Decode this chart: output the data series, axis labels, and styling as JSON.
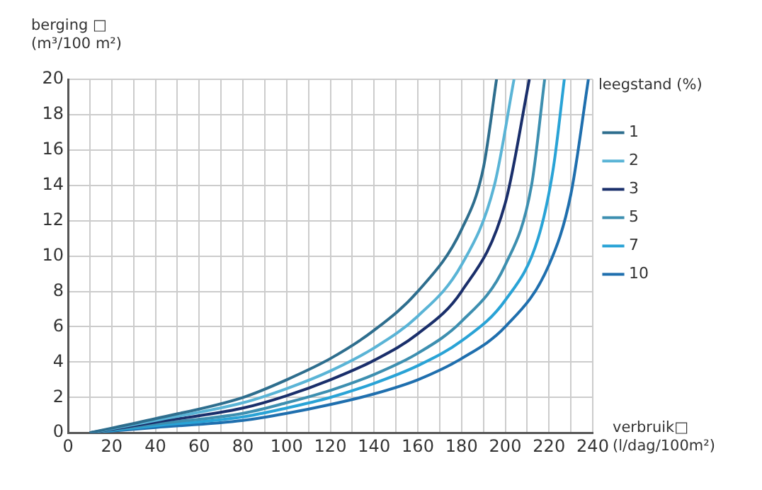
{
  "chart_data": {
    "type": "line",
    "ylabel": "berging □\n(m³/100 m²)",
    "xlabel": "verbruik□\n(l/dag/100m²)",
    "legend_title": "leegstand (%)",
    "legend": "top right",
    "grid": true,
    "marker": "none",
    "line_style": "solid",
    "xlim": [
      0,
      240
    ],
    "xticks": [
      0,
      {
        "value": 10,
        "label": null
      },
      20,
      {
        "value": 30,
        "label": null
      },
      40,
      {
        "value": 50,
        "label": null
      },
      60,
      {
        "value": 70,
        "label": null
      },
      80,
      {
        "value": 90,
        "label": null
      },
      100,
      {
        "value": 110,
        "label": null
      },
      120,
      {
        "value": 130,
        "label": null
      },
      140,
      {
        "value": 150,
        "label": null
      },
      160,
      {
        "value": 170,
        "label": null
      },
      180,
      {
        "value": 190,
        "label": null
      },
      200,
      {
        "value": 210,
        "label": null
      },
      220,
      {
        "value": 230,
        "label": null
      },
      240
    ],
    "ylim": [
      0,
      20
    ],
    "yticks": [
      0,
      2,
      4,
      6,
      8,
      10,
      12,
      14,
      16,
      18,
      20
    ],
    "series": [
      {
        "name": "1",
        "color": "#2e6e8e",
        "x": [
          10,
          40,
          80,
          100,
          120,
          140,
          160,
          180,
          190,
          196
        ],
        "values": [
          0,
          0.8,
          2,
          3,
          4.2,
          5.8,
          8,
          11.5,
          15,
          20
        ]
      },
      {
        "name": "2",
        "color": "#5ab4d6",
        "x": [
          10,
          40,
          80,
          100,
          120,
          140,
          160,
          180,
          195,
          204
        ],
        "values": [
          0,
          0.7,
          1.7,
          2.5,
          3.5,
          4.8,
          6.6,
          9.5,
          14,
          20
        ]
      },
      {
        "name": "3",
        "color": "#1a2f6b",
        "x": [
          10,
          40,
          80,
          100,
          120,
          140,
          160,
          180,
          200,
          211
        ],
        "values": [
          0,
          0.6,
          1.4,
          2.1,
          3,
          4.1,
          5.6,
          8,
          13,
          20
        ]
      },
      {
        "name": "5",
        "color": "#3d8fb0",
        "x": [
          10,
          40,
          80,
          100,
          120,
          140,
          160,
          180,
          200,
          212,
          218
        ],
        "values": [
          0,
          0.5,
          1.1,
          1.7,
          2.4,
          3.3,
          4.5,
          6.3,
          9.5,
          14,
          20
        ]
      },
      {
        "name": "7",
        "color": "#29a3d6",
        "x": [
          10,
          40,
          80,
          100,
          120,
          140,
          160,
          180,
          200,
          215,
          222,
          227
        ],
        "values": [
          0,
          0.4,
          0.9,
          1.4,
          2,
          2.8,
          3.8,
          5.2,
          7.5,
          11,
          15,
          20
        ]
      },
      {
        "name": "10",
        "color": "#1f6fae",
        "x": [
          10,
          40,
          80,
          100,
          120,
          140,
          160,
          180,
          200,
          220,
          230,
          238
        ],
        "values": [
          0,
          0.3,
          0.7,
          1.1,
          1.6,
          2.2,
          3,
          4.2,
          6,
          9.5,
          13.5,
          20
        ]
      }
    ]
  }
}
